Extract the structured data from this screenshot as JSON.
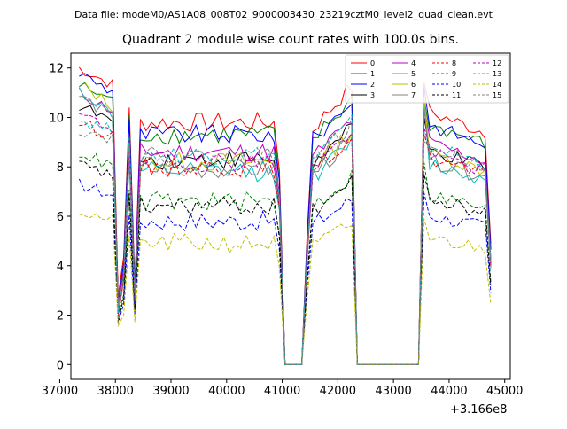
{
  "figure": {
    "suptitle": "Data file: modeM0/AS1A08_008T02_9000003430_23219cztM0_level2_quad_clean.evt",
    "title": "Quadrant 2 module wise count rates with 100.0s bins.",
    "x_offset_label": "+3.166e8"
  },
  "chart_data": {
    "type": "line",
    "title": "Quadrant 2 module wise count rates with 100.0s bins.",
    "xlabel": "",
    "ylabel": "",
    "x_offset": 316600000,
    "xlim": [
      37200,
      45100
    ],
    "ylim": [
      -0.6,
      12.6
    ],
    "xticks": [
      37000,
      38000,
      39000,
      40000,
      41000,
      42000,
      43000,
      44000,
      45000
    ],
    "xtick_labels": [
      "37000",
      "38000",
      "39000",
      "40000",
      "41000",
      "42000",
      "43000",
      "44000",
      "45000"
    ],
    "yticks": [
      0,
      2,
      4,
      6,
      8,
      10,
      12
    ],
    "ytick_labels": [
      "0",
      "2",
      "4",
      "6",
      "8",
      "10",
      "12"
    ],
    "grid": false,
    "legend_placement": "top-right",
    "legend_columns": 4,
    "segments": [
      {
        "start": 37350,
        "end": 38050,
        "shape": "hump"
      },
      {
        "start": 38050,
        "end": 38250,
        "shape": "dip"
      },
      {
        "start": 38250,
        "end": 38350,
        "shape": "spike"
      },
      {
        "start": 38350,
        "end": 40950,
        "shape": "plateau"
      },
      {
        "start": 40950,
        "end": 41050,
        "shape": "drop"
      },
      {
        "start": 41050,
        "end": 41350,
        "shape": "zero"
      },
      {
        "start": 41350,
        "end": 42250,
        "shape": "rise"
      },
      {
        "start": 42250,
        "end": 42450,
        "shape": "drop"
      },
      {
        "start": 42450,
        "end": 43450,
        "shape": "zero"
      },
      {
        "start": 43450,
        "end": 44750,
        "shape": "plateau-decline"
      }
    ],
    "series": [
      {
        "name": "0",
        "color": "#ff0000",
        "dash": "solid",
        "level": 9.8,
        "peak": 12.0
      },
      {
        "name": "1",
        "color": "#008000",
        "dash": "solid",
        "level": 9.3,
        "peak": 11.3
      },
      {
        "name": "2",
        "color": "#0000ff",
        "dash": "solid",
        "level": 9.3,
        "peak": 11.8
      },
      {
        "name": "3",
        "color": "#000000",
        "dash": "solid",
        "level": 8.3,
        "peak": 10.5
      },
      {
        "name": "4",
        "color": "#bf00bf",
        "dash": "solid",
        "level": 8.6,
        "peak": 11.0
      },
      {
        "name": "5",
        "color": "#00bfbf",
        "dash": "solid",
        "level": 7.8,
        "peak": 11.1
      },
      {
        "name": "6",
        "color": "#bfbf00",
        "dash": "solid",
        "level": 8.2,
        "peak": 11.4
      },
      {
        "name": "7",
        "color": "#808080",
        "dash": "solid",
        "level": 7.9,
        "peak": 10.9
      },
      {
        "name": "8",
        "color": "#ff0000",
        "dash": "dashed",
        "level": 8.0,
        "peak": 9.8
      },
      {
        "name": "9",
        "color": "#008000",
        "dash": "dashed",
        "level": 6.6,
        "peak": 8.6
      },
      {
        "name": "10",
        "color": "#0000ff",
        "dash": "dashed",
        "level": 5.8,
        "peak": 7.3
      },
      {
        "name": "11",
        "color": "#000000",
        "dash": "dashed",
        "level": 6.4,
        "peak": 8.1
      },
      {
        "name": "12",
        "color": "#bf00bf",
        "dash": "dashed",
        "level": 8.2,
        "peak": 10.1
      },
      {
        "name": "13",
        "color": "#00bfbf",
        "dash": "dashed",
        "level": 8.5,
        "peak": 9.9
      },
      {
        "name": "14",
        "color": "#bfbf00",
        "dash": "dashed",
        "level": 4.9,
        "peak": 6.2
      },
      {
        "name": "15",
        "color": "#808080",
        "dash": "dashed",
        "level": 8.4,
        "peak": 9.5
      }
    ]
  }
}
